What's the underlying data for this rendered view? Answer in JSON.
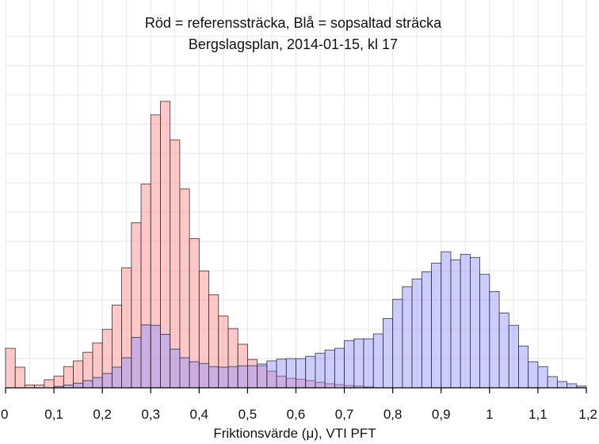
{
  "chart_data": {
    "type": "bar",
    "title_lines": [
      "Röd = referenssträcka, Blå = sopsaltad sträcka",
      "Bergslagsplan, 2014-01-15, kl 17"
    ],
    "xlabel": "Friktionsvärde (μ), VTI PFT",
    "ylabel": "",
    "xlim": [
      0,
      1.2
    ],
    "ylim": [
      0,
      100
    ],
    "bin_width": 0.02,
    "x_ticks": [
      0,
      0.1,
      0.2,
      0.3,
      0.4,
      0.5,
      0.6,
      0.7,
      0.8,
      0.9,
      1.0,
      1.1,
      1.2
    ],
    "x_tick_labels": [
      "0",
      "0,1",
      "0,2",
      "0,3",
      "0,4",
      "0,5",
      "0,6",
      "0,7",
      "0,8",
      "0,9",
      "1",
      "1,1",
      "1,2"
    ],
    "grid": true,
    "legend": "none",
    "colors": {
      "red": "#ff9a9a",
      "blue": "#8f8fff",
      "overlap": "#a070b8"
    },
    "series": [
      {
        "color": "#ff9a9a",
        "x_start": [
          0,
          0.02,
          0.04,
          0.06,
          0.08,
          0.1,
          0.12,
          0.14,
          0.16,
          0.18,
          0.2,
          0.22,
          0.24,
          0.26,
          0.28,
          0.3,
          0.32,
          0.34,
          0.36,
          0.38,
          0.4,
          0.42,
          0.44,
          0.46,
          0.48,
          0.5,
          0.52,
          0.54,
          0.56,
          0.58,
          0.6,
          0.62,
          0.64,
          0.66,
          0.68,
          0.7,
          0.72,
          0.74
        ],
        "values": [
          13.8,
          7.2,
          1.0,
          1.0,
          2.8,
          4.1,
          7.4,
          9.4,
          12.4,
          15.7,
          20.4,
          28.9,
          41.9,
          57.6,
          71.1,
          95.3,
          100.0,
          86.5,
          69.4,
          52.1,
          40.8,
          32.5,
          25.1,
          20.7,
          15.2,
          9.9,
          7.7,
          5.8,
          4.1,
          3.3,
          3.0,
          2.5,
          1.9,
          1.4,
          1.1,
          0.8,
          0.6,
          0.3
        ]
      },
      {
        "color": "#8f8fff",
        "x_start": [
          0.1,
          0.12,
          0.14,
          0.16,
          0.18,
          0.2,
          0.22,
          0.24,
          0.26,
          0.28,
          0.3,
          0.32,
          0.34,
          0.36,
          0.38,
          0.4,
          0.42,
          0.44,
          0.46,
          0.48,
          0.5,
          0.52,
          0.54,
          0.56,
          0.58,
          0.6,
          0.62,
          0.64,
          0.66,
          0.68,
          0.7,
          0.72,
          0.74,
          0.76,
          0.78,
          0.8,
          0.82,
          0.84,
          0.86,
          0.88,
          0.9,
          0.92,
          0.94,
          0.96,
          0.98,
          1.0,
          1.02,
          1.04,
          1.06,
          1.08,
          1.1,
          1.12,
          1.14,
          1.16,
          1.18
        ],
        "values": [
          0.5,
          1.0,
          1.6,
          2.5,
          3.6,
          5.0,
          7.2,
          10.5,
          17.6,
          22.0,
          21.8,
          18.7,
          13.5,
          10.5,
          9.1,
          8.5,
          7.4,
          7.2,
          7.4,
          7.7,
          7.7,
          8.3,
          9.4,
          10.0,
          10.2,
          10.2,
          11.0,
          12.1,
          13.2,
          13.8,
          16.5,
          17.1,
          17.1,
          18.8,
          24.2,
          30.9,
          35.3,
          38.0,
          40.5,
          43.5,
          47.5,
          44.7,
          46.6,
          45.5,
          39.6,
          33.6,
          26.1,
          21.8,
          14.6,
          9.1,
          7.4,
          3.9,
          2.2,
          1.4,
          0.6
        ]
      }
    ]
  }
}
